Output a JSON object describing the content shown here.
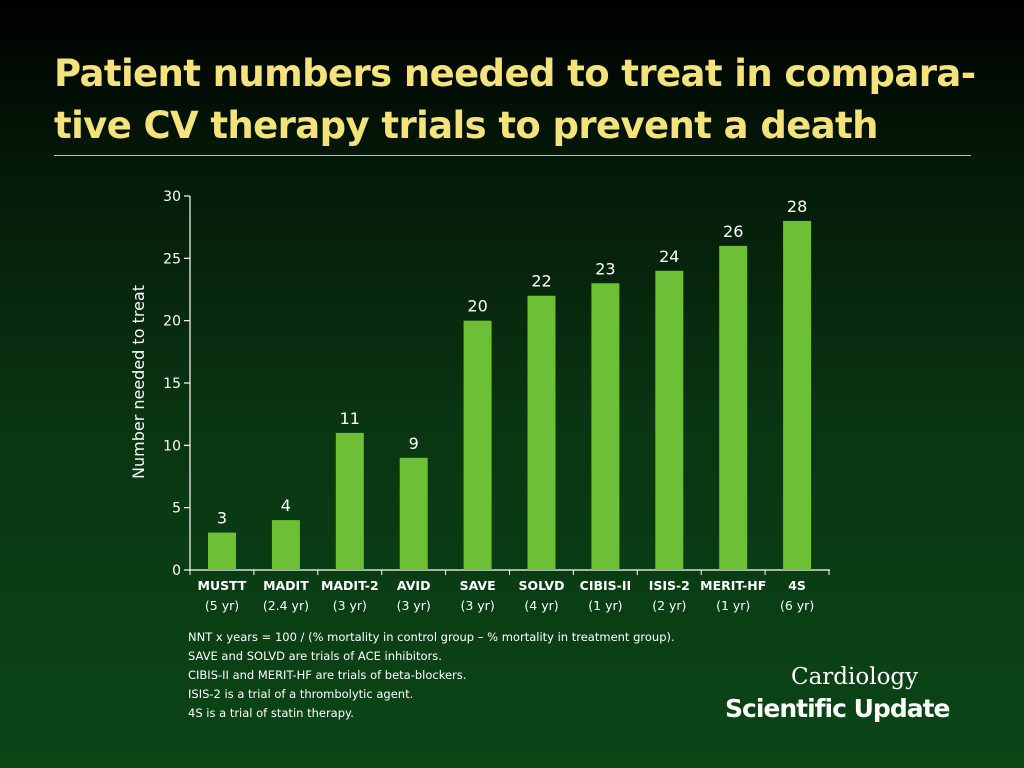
{
  "title": "Patient numbers needed to treat in compara-tive CV therapy trials  to prevent a death",
  "colors": {
    "bar": "#6dbf35",
    "title": "#f4e27a",
    "axis": "#ffffff"
  },
  "chart_data": {
    "type": "bar",
    "title": "",
    "xlabel": "",
    "ylabel": "Number needed to treat",
    "ylim": [
      0,
      30
    ],
    "yticks": [
      0,
      5,
      10,
      15,
      20,
      25,
      30
    ],
    "categories": [
      "MUSTT",
      "MADIT",
      "MADIT-2",
      "AVID",
      "SAVE",
      "SOLVD",
      "CIBIS-II",
      "ISIS-2",
      "MERIT-HF",
      "4S"
    ],
    "durations": [
      "(5 yr)",
      "(2.4 yr)",
      "(3 yr)",
      "(3 yr)",
      "(3 yr)",
      "(4 yr)",
      "(1 yr)",
      "(2 yr)",
      "(1 yr)",
      "(6 yr)"
    ],
    "values": [
      3,
      4,
      11,
      9,
      20,
      22,
      23,
      24,
      26,
      28
    ],
    "data_labels": [
      "3",
      "4",
      "11",
      "9",
      "20",
      "22",
      "23",
      "24",
      "26",
      "28"
    ],
    "grid": false,
    "legend": "none"
  },
  "notes": [
    "NNT x years = 100 / (% mortality in control group – % mortality in treatment group).",
    "SAVE and SOLVD are trials of ACE inhibitors.",
    "CIBIS-II and MERIT-HF are trials of beta-blockers.",
    "ISIS-2 is a trial of a thrombolytic agent.",
    "4S is a trial of statin therapy."
  ],
  "logo": {
    "line1": "Cardiology",
    "line2": "Scientific Update"
  }
}
